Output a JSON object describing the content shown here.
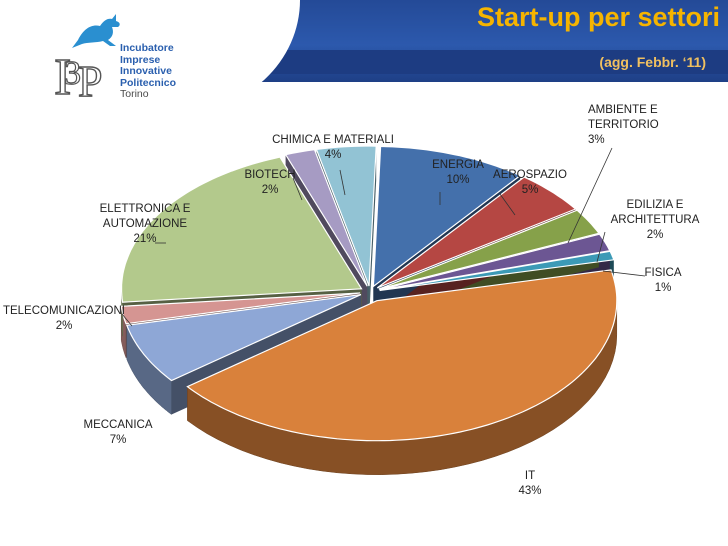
{
  "logo": {
    "lines": [
      "Incubatore",
      "Imprese",
      "Innovative",
      "Politecnico"
    ],
    "city": "Torino"
  },
  "header": {
    "title": "Start-up per settori",
    "subtitle": "(agg. Febbr. ‘11)"
  },
  "chart_data": {
    "type": "pie",
    "style": "3d-exploded",
    "legend": "none",
    "slices": [
      {
        "label": [
          "ENERGIA"
        ],
        "pct_text": "10%",
        "value": 10,
        "color": "#4470ab"
      },
      {
        "label": [
          "AEROSPAZIO"
        ],
        "pct_text": "5%",
        "value": 5,
        "color": "#b54743"
      },
      {
        "label": [
          "AMBIENTE E",
          "TERRITORIO"
        ],
        "pct_text": "3%",
        "value": 3,
        "color": "#86a14a"
      },
      {
        "label": [
          "EDILIZIA E",
          "ARCHITETTURA"
        ],
        "pct_text": "2%",
        "value": 2,
        "color": "#6c5693"
      },
      {
        "label": [
          "FISICA"
        ],
        "pct_text": "1%",
        "value": 1,
        "color": "#3c9ab6"
      },
      {
        "label": [
          "IT"
        ],
        "pct_text": "43%",
        "value": 43,
        "color": "#d9813b"
      },
      {
        "label": [
          "MECCANICA"
        ],
        "pct_text": "7%",
        "value": 7,
        "color": "#8ea7d6"
      },
      {
        "label": [
          "TELECOMUNICAZIONI"
        ],
        "pct_text": "2%",
        "value": 2,
        "color": "#d59592"
      },
      {
        "label": [
          "ELETTRONICA E",
          "AUTOMAZIONE"
        ],
        "pct_text": "21%",
        "value": 21,
        "color": "#b3c98c"
      },
      {
        "label": [
          "BIOTECH"
        ],
        "pct_text": "2%",
        "value": 2,
        "color": "#a69bc3"
      },
      {
        "label": [
          "CHIMICA  E MATERIALI"
        ],
        "pct_text": "4%",
        "value": 4,
        "color": "#92c3d4"
      }
    ]
  }
}
